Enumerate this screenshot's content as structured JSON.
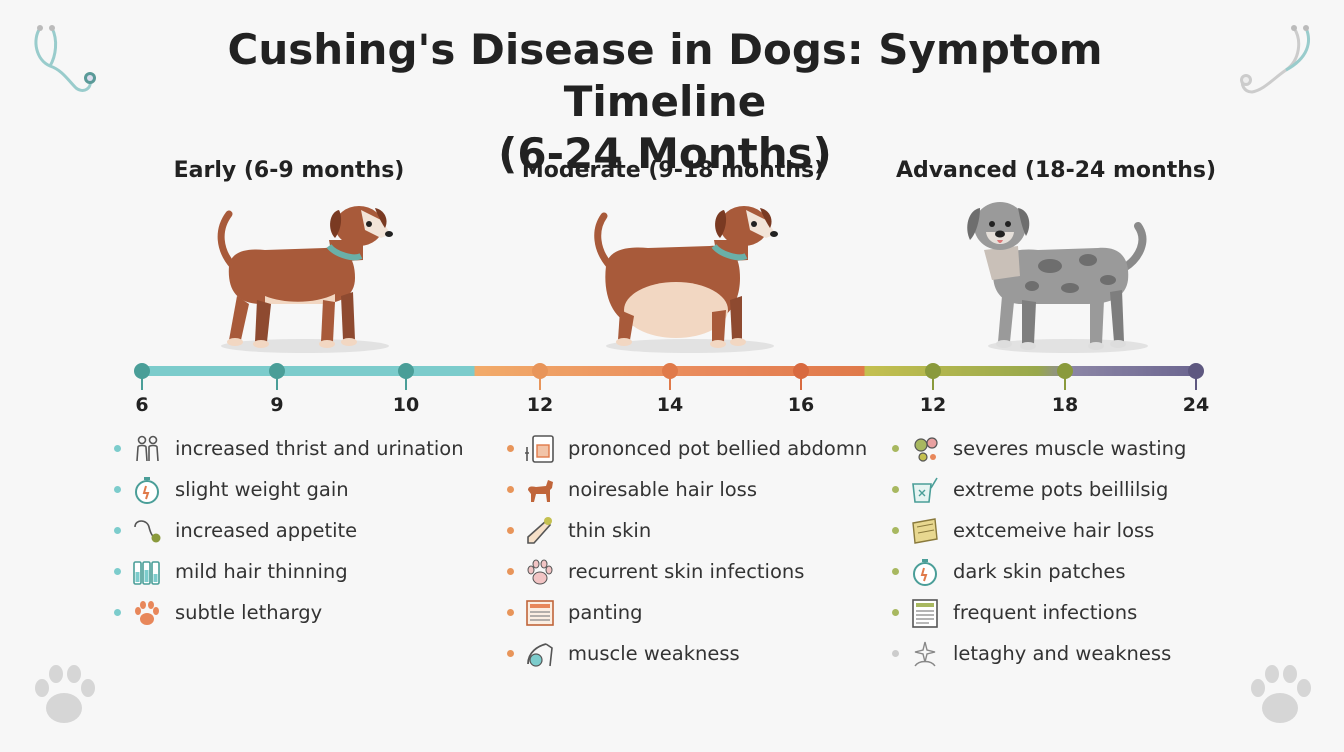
{
  "title_line1": "Cushing's Disease in Dogs: Symptom Timeline",
  "title_line2": "(6-24 Months)",
  "stages": [
    {
      "title": "Early (6-9 months)",
      "color": "#7ccccc",
      "dot_color": "#4a9e98"
    },
    {
      "title": "Moderate (9-18 months)",
      "color": "#e8875a",
      "dot_color": "#e07a4a"
    },
    {
      "title": "Advanced (18-24 months)",
      "color": "#a8b860",
      "dot_color": "#8a9a3c"
    }
  ],
  "ticks": [
    "6",
    "9",
    "10",
    "12",
    "14",
    "16",
    "12",
    "18",
    "24"
  ],
  "symptoms": {
    "early": [
      {
        "text": "increased thrist and urination",
        "icon": "people-icon"
      },
      {
        "text": "slight weight gain",
        "icon": "stopwatch-icon"
      },
      {
        "text": "increased appetite",
        "icon": "stethoscope-icon"
      },
      {
        "text": "mild hair thinning",
        "icon": "bottles-icon"
      },
      {
        "text": "subtle lethargy",
        "icon": "paw-icon"
      }
    ],
    "moderate": [
      {
        "text": "prononced pot bellied abdomn",
        "icon": "chart-icon"
      },
      {
        "text": "noiresable hair loss",
        "icon": "dog-icon"
      },
      {
        "text": "thin skin",
        "icon": "syringe-icon"
      },
      {
        "text": "recurrent skin infections",
        "icon": "paw-icon"
      },
      {
        "text": "panting",
        "icon": "newspaper-icon"
      },
      {
        "text": "muscle weakness",
        "icon": "stethoscope-icon"
      }
    ],
    "advanced": [
      {
        "text": "severes muscle wasting",
        "icon": "germs-icon"
      },
      {
        "text": "extreme pots beillilsig",
        "icon": "cup-icon"
      },
      {
        "text": "extcemeive hair loss",
        "icon": "cloth-icon"
      },
      {
        "text": "dark skin patches",
        "icon": "stopwatch-icon"
      },
      {
        "text": "frequent infections",
        "icon": "document-icon"
      },
      {
        "text": "letaghy and weakness",
        "icon": "sparkle-icon"
      }
    ]
  },
  "colors": {
    "teal": "#4a9e98",
    "orange": "#e07a4a",
    "olive": "#8a9a3c",
    "purple": "#5e5880",
    "dog_brown": "#a85a3a",
    "dog_grey": "#8a8a8a"
  }
}
